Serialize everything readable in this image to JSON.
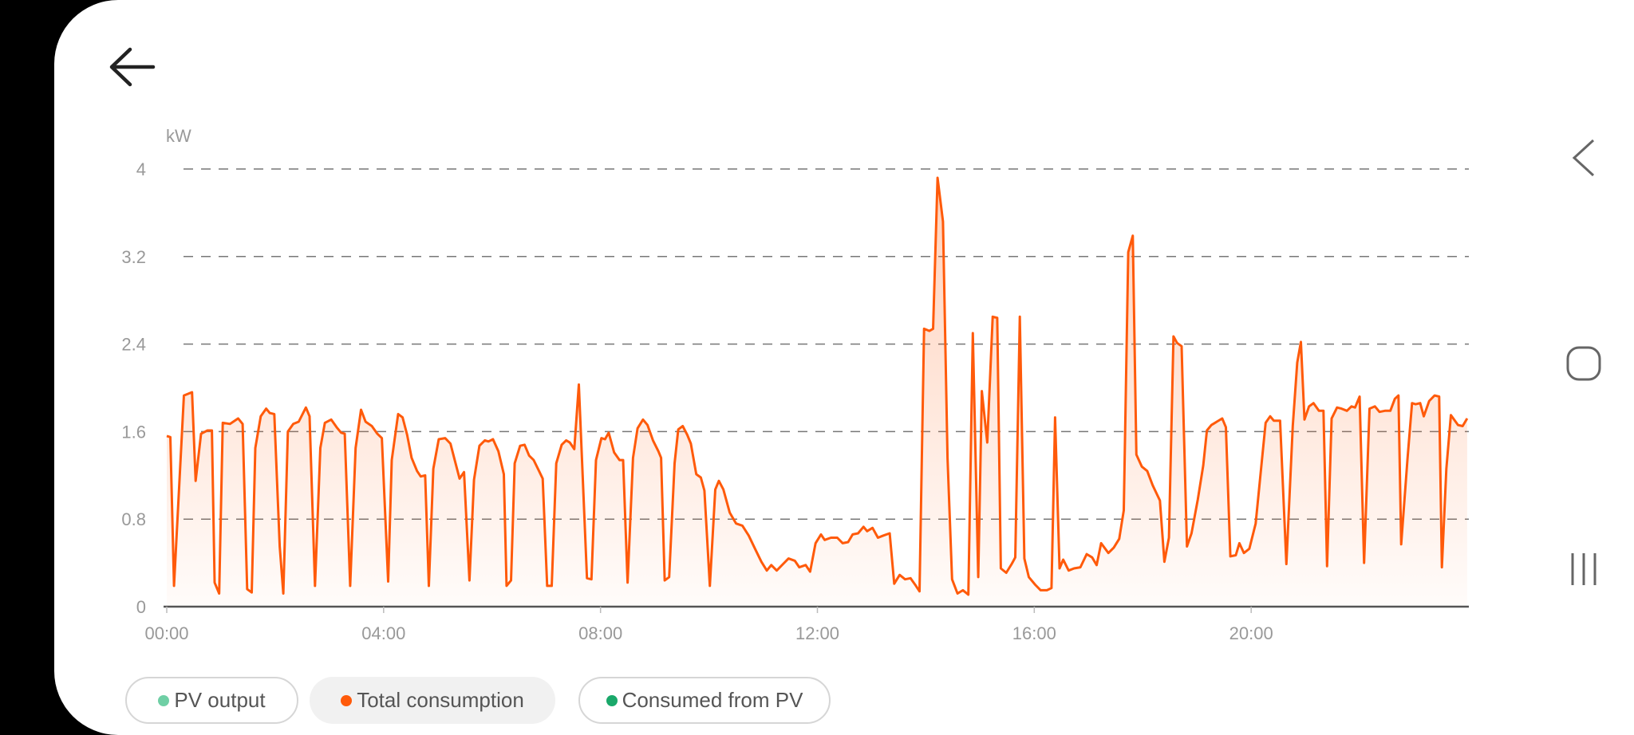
{
  "header": {
    "back_icon": "arrow-left-icon"
  },
  "legend": [
    {
      "label": "PV output",
      "color": "#6fcfa5",
      "active": false
    },
    {
      "label": "Total consumption",
      "color": "#ff5a0a",
      "active": true
    },
    {
      "label": "Consumed from PV",
      "color": "#1aa86a",
      "active": false
    }
  ],
  "system_nav": {
    "back": "chevron-left-icon",
    "home": "rounded-square-icon",
    "recents": "three-bars-icon"
  },
  "chart_data": {
    "type": "area",
    "ylabel": "kW",
    "ylim": [
      0,
      4
    ],
    "yticks": [
      "0",
      "0.8",
      "1.6",
      "2.4",
      "3.2",
      "4"
    ],
    "xticks": [
      "00:00",
      "04:00",
      "08:00",
      "12:00",
      "16:00",
      "20:00"
    ],
    "grid": true,
    "legend_placement": "bottom",
    "series": [
      {
        "name": "Total consumption",
        "color": "#ff5a0a",
        "x": [
          "00:00",
          "00:04",
          "00:08",
          "00:19",
          "00:28",
          "00:32",
          "00:38",
          "00:45",
          "00:50",
          "00:53",
          "00:58",
          "01:02",
          "01:10",
          "01:19",
          "01:24",
          "01:29",
          "01:34",
          "01:38",
          "01:44",
          "01:50",
          "01:54",
          "01:59",
          "02:05",
          "02:09",
          "02:14",
          "02:20",
          "02:26",
          "02:34",
          "02:38",
          "02:44",
          "02:50",
          "02:55",
          "03:02",
          "03:08",
          "03:13",
          "03:17",
          "03:23",
          "03:29",
          "03:35",
          "03:40",
          "03:47",
          "03:53",
          "03:58",
          "04:05",
          "04:09",
          "04:16",
          "04:21",
          "04:26",
          "04:31",
          "04:37",
          "04:41",
          "04:46",
          "04:50",
          "04:55",
          "05:01",
          "05:08",
          "05:14",
          "05:19",
          "05:24",
          "05:29",
          "05:35",
          "05:40",
          "05:46",
          "05:52",
          "05:56",
          "06:01",
          "06:07",
          "06:13",
          "06:16",
          "06:21",
          "06:25",
          "06:31",
          "06:36",
          "06:41",
          "06:46",
          "06:52",
          "06:56",
          "07:01",
          "07:06",
          "07:11",
          "07:17",
          "07:22",
          "07:26",
          "07:31",
          "07:36",
          "07:45",
          "07:50",
          "07:55",
          "08:01",
          "08:05",
          "08:09",
          "08:15",
          "08:21",
          "08:25",
          "08:30",
          "08:36",
          "08:41",
          "08:47",
          "08:52",
          "08:58",
          "09:04",
          "09:07",
          "09:11",
          "09:16",
          "09:22",
          "09:26",
          "09:31",
          "09:36",
          "09:40",
          "09:46",
          "09:51",
          "09:55",
          "10:01",
          "10:07",
          "10:11",
          "10:16",
          "10:23",
          "10:30",
          "10:37",
          "10:44",
          "10:51",
          "10:58",
          "11:04",
          "11:09",
          "11:15",
          "11:22",
          "11:28",
          "11:35",
          "11:40",
          "11:47",
          "11:52",
          "11:58",
          "12:04",
          "12:08",
          "12:15",
          "12:22",
          "12:28",
          "12:34",
          "12:39",
          "12:45",
          "12:51",
          "12:55",
          "13:01",
          "13:07",
          "13:13",
          "13:20",
          "13:25",
          "13:31",
          "13:37",
          "13:43",
          "13:49",
          "13:53",
          "13:58",
          "14:04",
          "14:08",
          "14:13",
          "14:19",
          "14:24",
          "14:29",
          "14:35",
          "14:41",
          "14:47",
          "14:52",
          "14:58",
          "15:02",
          "15:08",
          "15:14",
          "15:19",
          "15:23",
          "15:29",
          "15:35",
          "15:39",
          "15:44",
          "15:49",
          "15:54",
          "16:01",
          "16:07",
          "16:14",
          "16:19",
          "16:23",
          "16:28",
          "16:32",
          "16:38",
          "16:44",
          "16:51",
          "16:58",
          "17:04",
          "17:09",
          "17:14",
          "17:22",
          "17:28",
          "17:34",
          "17:39",
          "17:44",
          "17:49",
          "17:53",
          "17:59",
          "18:05",
          "18:11",
          "18:19",
          "18:24",
          "18:29",
          "18:34",
          "18:38",
          "18:43",
          "18:49",
          "18:54",
          "19:01",
          "19:07",
          "19:11",
          "19:16",
          "19:22",
          "19:28",
          "19:32",
          "19:37",
          "19:43",
          "19:47",
          "19:52",
          "19:58",
          "20:05",
          "20:10",
          "20:16",
          "20:21",
          "20:25",
          "20:32",
          "20:39",
          "20:46",
          "20:51",
          "20:55",
          "20:59",
          "21:04",
          "21:09",
          "21:15",
          "21:20",
          "21:24",
          "21:29",
          "21:35",
          "21:40",
          "21:46",
          "21:51",
          "21:55",
          "22:00",
          "22:05",
          "22:11",
          "22:17",
          "22:22",
          "22:28",
          "22:34",
          "22:39",
          "22:43",
          "22:46",
          "22:53",
          "22:58",
          "23:02",
          "23:07",
          "23:11",
          "23:17",
          "23:23",
          "23:28",
          "23:31",
          "23:36",
          "23:41",
          "23:49",
          "23:54",
          "23:59"
        ],
        "values": [
          1.56,
          1.55,
          0.19,
          1.93,
          1.96,
          1.15,
          1.58,
          1.61,
          1.61,
          0.22,
          0.12,
          1.68,
          1.67,
          1.72,
          1.67,
          0.16,
          0.13,
          1.45,
          1.74,
          1.81,
          1.77,
          1.76,
          0.55,
          0.12,
          1.6,
          1.67,
          1.69,
          1.82,
          1.74,
          0.19,
          1.45,
          1.68,
          1.71,
          1.64,
          1.59,
          1.58,
          0.19,
          1.45,
          1.8,
          1.69,
          1.65,
          1.58,
          1.54,
          0.23,
          1.34,
          1.76,
          1.73,
          1.57,
          1.36,
          1.24,
          1.19,
          1.2,
          0.19,
          1.26,
          1.53,
          1.54,
          1.49,
          1.33,
          1.17,
          1.23,
          0.24,
          1.16,
          1.47,
          1.52,
          1.51,
          1.53,
          1.42,
          1.21,
          0.19,
          0.24,
          1.31,
          1.47,
          1.48,
          1.38,
          1.34,
          1.24,
          1.17,
          0.19,
          0.19,
          1.31,
          1.48,
          1.52,
          1.5,
          1.44,
          2.03,
          0.26,
          0.25,
          1.34,
          1.54,
          1.53,
          1.59,
          1.41,
          1.34,
          1.34,
          0.22,
          1.36,
          1.63,
          1.71,
          1.66,
          1.52,
          1.42,
          1.36,
          0.24,
          0.27,
          1.31,
          1.62,
          1.65,
          1.57,
          1.49,
          1.21,
          1.18,
          1.06,
          0.19,
          1.07,
          1.15,
          1.07,
          0.86,
          0.76,
          0.74,
          0.65,
          0.53,
          0.41,
          0.33,
          0.38,
          0.33,
          0.39,
          0.44,
          0.42,
          0.36,
          0.38,
          0.32,
          0.58,
          0.66,
          0.61,
          0.63,
          0.63,
          0.58,
          0.59,
          0.66,
          0.67,
          0.73,
          0.69,
          0.72,
          0.63,
          0.65,
          0.67,
          0.21,
          0.29,
          0.25,
          0.26,
          0.19,
          0.14,
          2.54,
          2.52,
          2.54,
          3.92,
          3.52,
          1.36,
          0.25,
          0.12,
          0.15,
          0.11,
          2.5,
          0.27,
          1.97,
          1.5,
          2.65,
          2.64,
          0.35,
          0.31,
          0.39,
          0.45,
          2.65,
          0.44,
          0.27,
          0.2,
          0.15,
          0.15,
          0.17,
          1.73,
          0.35,
          0.43,
          0.33,
          0.35,
          0.36,
          0.48,
          0.45,
          0.38,
          0.58,
          0.49,
          0.54,
          0.62,
          0.88,
          3.24,
          3.39,
          1.39,
          1.28,
          1.24,
          1.11,
          0.97,
          0.41,
          0.63,
          2.47,
          2.41,
          2.38,
          0.55,
          0.67,
          0.98,
          1.29,
          1.61,
          1.66,
          1.69,
          1.72,
          1.64,
          0.46,
          0.47,
          0.58,
          0.49,
          0.53,
          0.76,
          1.18,
          1.68,
          1.74,
          1.7,
          1.7,
          0.39,
          1.65,
          2.23,
          2.42,
          1.71,
          1.83,
          1.86,
          1.79,
          1.79,
          0.37,
          1.72,
          1.82,
          1.81,
          1.79,
          1.83,
          1.82,
          1.92,
          0.4,
          1.81,
          1.83,
          1.78,
          1.79,
          1.79,
          1.9,
          1.93,
          0.57,
          1.35,
          1.86,
          1.85,
          1.86,
          1.74,
          1.88,
          1.93,
          1.92,
          0.36,
          1.26,
          1.75,
          1.66,
          1.65,
          1.72
        ]
      }
    ]
  }
}
